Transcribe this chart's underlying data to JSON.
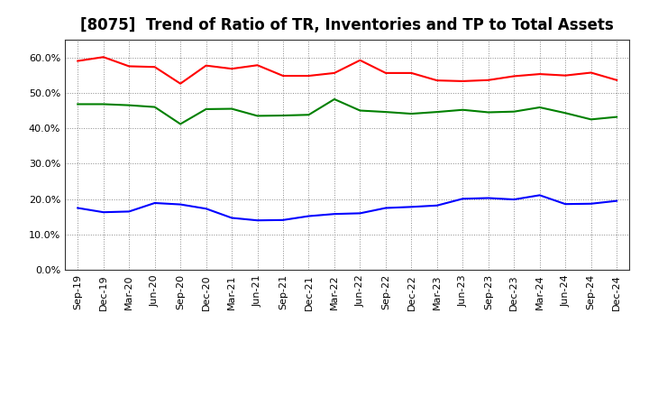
{
  "title": "[8075]  Trend of Ratio of TR, Inventories and TP to Total Assets",
  "x_labels": [
    "Sep-19",
    "Dec-19",
    "Mar-20",
    "Jun-20",
    "Sep-20",
    "Dec-20",
    "Mar-21",
    "Jun-21",
    "Sep-21",
    "Dec-21",
    "Mar-22",
    "Jun-22",
    "Sep-22",
    "Dec-22",
    "Mar-23",
    "Jun-23",
    "Sep-23",
    "Dec-23",
    "Mar-24",
    "Jun-24",
    "Sep-24",
    "Dec-24"
  ],
  "trade_receivables": [
    0.59,
    0.601,
    0.575,
    0.573,
    0.526,
    0.577,
    0.568,
    0.578,
    0.548,
    0.548,
    0.556,
    0.592,
    0.556,
    0.556,
    0.535,
    0.533,
    0.536,
    0.547,
    0.553,
    0.549,
    0.557,
    0.536
  ],
  "inventories": [
    0.175,
    0.163,
    0.165,
    0.189,
    0.185,
    0.173,
    0.147,
    0.14,
    0.141,
    0.152,
    0.158,
    0.16,
    0.175,
    0.178,
    0.182,
    0.201,
    0.203,
    0.199,
    0.211,
    0.186,
    0.187,
    0.195
  ],
  "trade_payables": [
    0.468,
    0.468,
    0.465,
    0.46,
    0.412,
    0.454,
    0.455,
    0.435,
    0.436,
    0.438,
    0.482,
    0.45,
    0.446,
    0.441,
    0.446,
    0.452,
    0.445,
    0.447,
    0.459,
    0.443,
    0.425,
    0.432
  ],
  "color_tr": "#FF0000",
  "color_inv": "#0000FF",
  "color_tp": "#008000",
  "ylim": [
    0.0,
    0.65
  ],
  "yticks": [
    0.0,
    0.1,
    0.2,
    0.3,
    0.4,
    0.5,
    0.6
  ],
  "background_color": "#FFFFFF",
  "plot_bg_color": "#FFFFFF",
  "grid_color": "#888888",
  "line_width": 1.5,
  "title_fontsize": 12,
  "tick_fontsize": 8,
  "legend_fontsize": 9
}
